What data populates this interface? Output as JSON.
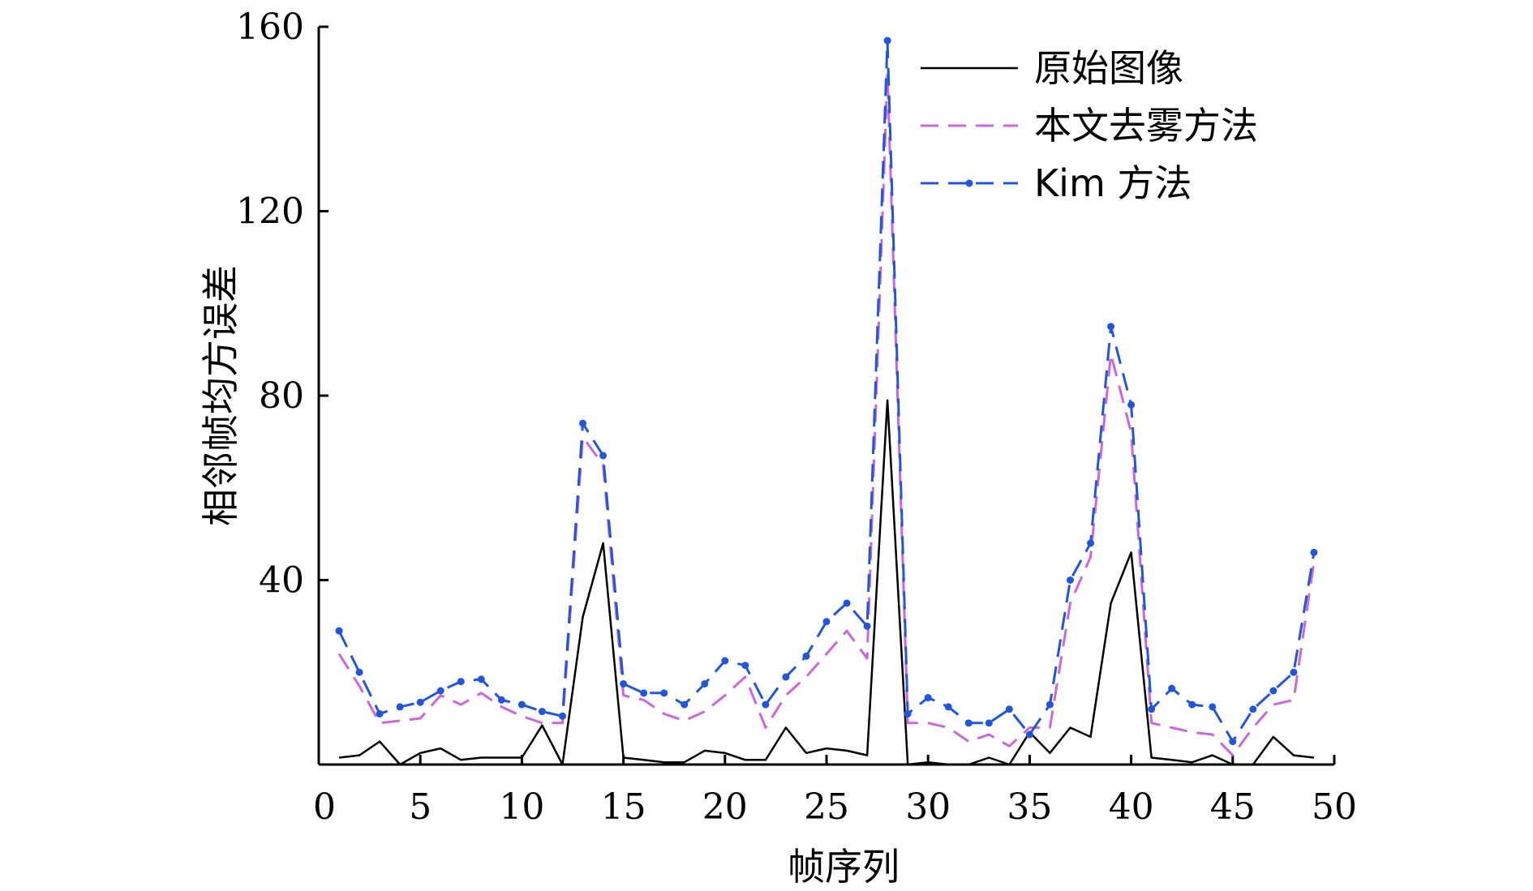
{
  "chart_data": {
    "type": "line",
    "xlabel": "帧序列",
    "ylabel": "相邻帧均方误差",
    "xlim": [
      0,
      50
    ],
    "ylim": [
      0,
      160
    ],
    "xticks": [
      0,
      5,
      10,
      15,
      20,
      25,
      30,
      35,
      40,
      45,
      50
    ],
    "yticks": [
      40,
      80,
      120,
      160
    ],
    "legend_position": "top-right",
    "series": [
      {
        "name": "原始图像",
        "color": "#000000",
        "line_style": "solid",
        "marker": "none",
        "x": [
          1,
          2,
          3,
          4,
          5,
          6,
          7,
          8,
          9,
          10,
          11,
          12,
          13,
          14,
          15,
          16,
          17,
          18,
          19,
          20,
          21,
          22,
          23,
          24,
          25,
          26,
          27,
          28,
          29,
          30,
          31,
          32,
          33,
          34,
          35,
          36,
          37,
          38,
          39,
          40,
          41,
          42,
          43,
          44,
          45,
          46,
          47,
          48,
          49
        ],
        "values": [
          1.5,
          2,
          5,
          0,
          2.5,
          3.5,
          1,
          1.5,
          1.5,
          1.5,
          8.5,
          0,
          32,
          48,
          1.5,
          1,
          0.5,
          0.5,
          3,
          2.5,
          1,
          1,
          8,
          2.5,
          3.5,
          3,
          2,
          79,
          0,
          0.5,
          0,
          0,
          1.5,
          0,
          7,
          2.5,
          8,
          6,
          35,
          46,
          1.5,
          1,
          0.5,
          2,
          0,
          0,
          6,
          2,
          1.5
        ]
      },
      {
        "name": "本文去雾方法",
        "color": "#cc66dd",
        "line_style": "dashed",
        "marker": "none",
        "x": [
          1,
          2,
          3,
          4,
          5,
          6,
          7,
          8,
          9,
          10,
          11,
          12,
          13,
          14,
          15,
          16,
          17,
          18,
          19,
          20,
          21,
          22,
          23,
          24,
          25,
          26,
          27,
          28,
          29,
          30,
          31,
          32,
          33,
          34,
          35,
          36,
          37,
          38,
          39,
          40,
          41,
          42,
          43,
          44,
          45,
          46,
          47,
          48,
          49
        ],
        "values": [
          24,
          17,
          9,
          9.5,
          10,
          15,
          13,
          15.5,
          12.5,
          10.5,
          9,
          9,
          71,
          65,
          15,
          14,
          11,
          9.5,
          11.5,
          15,
          19,
          8,
          15,
          19,
          24,
          29,
          23,
          150,
          9,
          9,
          8,
          5,
          6.5,
          4,
          8,
          8,
          35,
          45,
          89,
          72,
          9,
          8,
          7,
          6.5,
          2,
          8,
          13,
          14,
          44
        ]
      },
      {
        "name": "Kim 方法",
        "color": "#2255dd",
        "line_style": "dashed",
        "marker": "dot",
        "x": [
          1,
          2,
          3,
          4,
          5,
          6,
          7,
          8,
          9,
          10,
          11,
          12,
          13,
          14,
          15,
          16,
          17,
          18,
          19,
          20,
          21,
          22,
          23,
          24,
          25,
          26,
          27,
          28,
          29,
          30,
          31,
          32,
          33,
          34,
          35,
          36,
          37,
          38,
          39,
          40,
          41,
          42,
          43,
          44,
          45,
          46,
          47,
          48,
          49
        ],
        "values": [
          29,
          20,
          11,
          12.5,
          13.5,
          16,
          18,
          18.5,
          14,
          13,
          11.5,
          10.5,
          74,
          67,
          17.5,
          15.5,
          15.5,
          13,
          17.5,
          22.5,
          21.5,
          13,
          19,
          23.5,
          31,
          35,
          30,
          157,
          11,
          14.5,
          12.5,
          9,
          9,
          12,
          6.5,
          13,
          40,
          48,
          95,
          78,
          12,
          16.5,
          13,
          12.5,
          5,
          12,
          16,
          20,
          46
        ]
      }
    ]
  }
}
